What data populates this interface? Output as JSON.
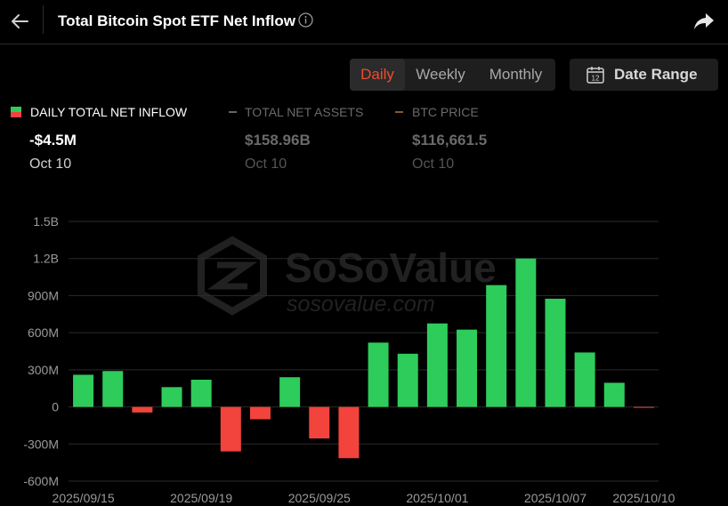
{
  "header": {
    "title": "Total Bitcoin Spot ETF Net Inflow"
  },
  "tabs": [
    {
      "label": "Daily",
      "active": true
    },
    {
      "label": "Weekly",
      "active": false
    },
    {
      "label": "Monthly",
      "active": false
    }
  ],
  "date_range": {
    "label": "Date Range",
    "calendar_day": "12"
  },
  "legend": [
    {
      "label": "DAILY TOTAL NET INFLOW",
      "value": "-$4.5M",
      "date": "Oct 10",
      "active": true
    },
    {
      "label": "TOTAL NET ASSETS",
      "value": "$158.96B",
      "date": "Oct 10",
      "active": false
    },
    {
      "label": "BTC PRICE",
      "value": "$116,661.5",
      "date": "Oct 10",
      "active": false
    }
  ],
  "watermark": {
    "brand": "SoSoValue",
    "url": "sosovalue.com"
  },
  "colors": {
    "positive": "#2ecc5b",
    "negative": "#f2433c",
    "accent": "#f04a2e",
    "btc_price": "#8a5a26",
    "assets": "#666666"
  },
  "chart_data": {
    "type": "bar",
    "title": "Total Bitcoin Spot ETF Net Inflow",
    "series": [
      {
        "name": "DAILY TOTAL NET INFLOW",
        "values": [
          260,
          290,
          -45,
          160,
          220,
          -360,
          -100,
          240,
          -255,
          -415,
          520,
          430,
          675,
          625,
          985,
          1200,
          875,
          440,
          195,
          -4.5
        ]
      }
    ],
    "categories": [
      "2025/09/15",
      "2025/09/16",
      "2025/09/17",
      "2025/09/18",
      "2025/09/19",
      "2025/09/22",
      "2025/09/23",
      "2025/09/24",
      "2025/09/25",
      "2025/09/26",
      "2025/09/29",
      "2025/09/30",
      "2025/10/01",
      "2025/10/02",
      "2025/10/03",
      "2025/10/06",
      "2025/10/07",
      "2025/10/08",
      "2025/10/09",
      "2025/10/10"
    ],
    "x_tick_labels": [
      "2025/09/15",
      "2025/09/19",
      "2025/09/25",
      "2025/10/01",
      "2025/10/07",
      "2025/10/10"
    ],
    "x_tick_indices": [
      0,
      4,
      8,
      12,
      16,
      19
    ],
    "y_ticks": [
      -600,
      -300,
      0,
      300,
      600,
      900,
      1200,
      1500
    ],
    "y_tick_labels": [
      "-600M",
      "-300M",
      "0",
      "300M",
      "600M",
      "900M",
      "1.2B",
      "1.5B"
    ],
    "ylim": [
      -600,
      1500
    ],
    "grid": true
  }
}
